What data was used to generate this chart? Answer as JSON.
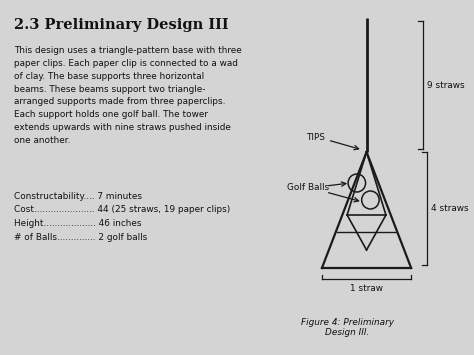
{
  "title": "2.3 Preliminary Design III",
  "body_text": "This design uses a triangle-pattern base with three\npaper clips. Each paper clip is connected to a wad\nof clay. The base supports three horizontal\nbeams. These beams support two triangle-\narranged supports made from three paperclips.\nEach support holds one golf ball. The tower\nextends upwards with nine straws pushed inside\none another.",
  "stats": [
    "Constructability.... 7 minutes",
    "Cost...................... 44 (25 straws, 19 paper clips)",
    "Height................... 46 inches",
    "# of Balls.............. 2 golf balls"
  ],
  "figure_caption": "Figure 4: Preliminary\nDesign III.",
  "label_tips": "TIPS",
  "label_golf": "Golf Balls",
  "label_9straws": "9 straws",
  "label_4straws": "4 straws",
  "label_1straw": "1 straw",
  "bg_color": "#d4d4d4",
  "text_color": "#111111",
  "diagram_color": "#1a1a1a"
}
